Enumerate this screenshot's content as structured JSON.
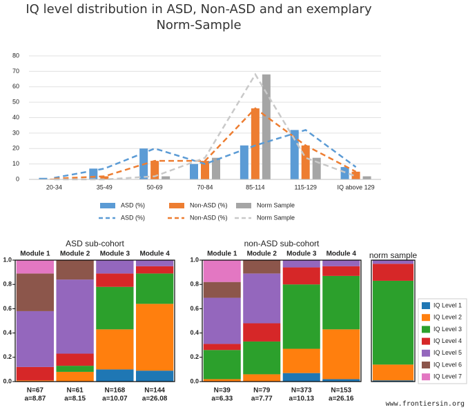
{
  "chart_data": [
    {
      "type": "bar",
      "title": "IQ level distribution in ASD, Non-ASD and an exemplary Norm-Sample",
      "categories": [
        "20-34",
        "35-49",
        "50-69",
        "70-84",
        "85-114",
        "115-129",
        "IQ above 129"
      ],
      "series": [
        {
          "name": "ASD (%)",
          "type": "bar",
          "color": "#5b9bd5",
          "values": [
            1,
            7,
            20,
            10,
            22,
            32,
            8
          ]
        },
        {
          "name": "Non-ASD (%)",
          "type": "bar",
          "color": "#ed7d31",
          "values": [
            0.5,
            2,
            12,
            12,
            46,
            22,
            5
          ]
        },
        {
          "name": "Norm Sample",
          "type": "bar",
          "color": "#a5a5a5",
          "values": [
            0,
            0,
            2,
            14,
            68,
            14,
            2
          ]
        },
        {
          "name": "ASD (%)",
          "type": "line",
          "color": "#5b9bd5",
          "values": [
            1,
            7,
            20,
            10,
            22,
            32,
            8
          ]
        },
        {
          "name": "Non-ASD (%)",
          "type": "line",
          "color": "#ed7d31",
          "values": [
            0.5,
            2,
            12,
            12,
            46,
            22,
            5
          ]
        },
        {
          "name": "Norm Sample",
          "type": "line",
          "color": "#c9c9c9",
          "values": [
            0,
            0,
            2,
            14,
            68,
            14,
            2
          ]
        }
      ],
      "ylim": [
        0,
        80
      ],
      "yticks": [
        0,
        10,
        20,
        30,
        40,
        50,
        60,
        70,
        80
      ],
      "grid": true
    },
    {
      "type": "stacked_bar",
      "title": "ASD sub-cohort",
      "categories": [
        "Module 1",
        "Module 2",
        "Module 3",
        "Module 4"
      ],
      "sample_labels": [
        "N=67",
        "N=61",
        "N=168",
        "N=144"
      ],
      "age_labels": [
        "a=8.87",
        "a=8.15",
        "a=10.07",
        "a=26.08"
      ],
      "series": [
        {
          "color": "#1f77b4",
          "values": [
            0,
            0,
            0.1,
            0.09
          ]
        },
        {
          "color": "#ff7f0e",
          "values": [
            0.01,
            0.08,
            0.33,
            0.55
          ]
        },
        {
          "color": "#2ca02c",
          "values": [
            0,
            0.05,
            0.35,
            0.25
          ]
        },
        {
          "color": "#d62728",
          "values": [
            0.11,
            0.1,
            0.11,
            0.06
          ]
        },
        {
          "color": "#9467bd",
          "values": [
            0.46,
            0.61,
            0.11,
            0.05
          ]
        },
        {
          "color": "#8c564b",
          "values": [
            0.31,
            0.16,
            0,
            0
          ]
        },
        {
          "color": "#e377c2",
          "values": [
            0.11,
            0,
            0,
            0
          ]
        }
      ],
      "ylim": [
        0,
        1
      ],
      "yticks": [
        {
          "value": 0,
          "label": "0.0"
        },
        0.2,
        0.4,
        0.6,
        0.8,
        {
          "value": 1,
          "label": "1.0"
        }
      ]
    },
    {
      "type": "stacked_bar",
      "title": "non-ASD sub-cohort",
      "categories": [
        "Module 1",
        "Module 2",
        "Module 3",
        "Module 4"
      ],
      "sample_labels": [
        "N=39",
        "N=79",
        "N=373",
        "N=153"
      ],
      "age_labels": [
        "a=6.33",
        "a=7.77",
        "a=10.13",
        "a=26.16"
      ],
      "series": [
        {
          "color": "#1f77b4",
          "values": [
            0,
            0,
            0.07,
            0.02
          ]
        },
        {
          "color": "#ff7f0e",
          "values": [
            0.02,
            0.06,
            0.2,
            0.41
          ]
        },
        {
          "color": "#2ca02c",
          "values": [
            0.24,
            0.27,
            0.53,
            0.44
          ]
        },
        {
          "color": "#d62728",
          "values": [
            0.05,
            0.15,
            0.14,
            0.08
          ]
        },
        {
          "color": "#9467bd",
          "values": [
            0.38,
            0.41,
            0.06,
            0.05
          ]
        },
        {
          "color": "#8c564b",
          "values": [
            0.13,
            0.11,
            0,
            0
          ]
        },
        {
          "color": "#e377c2",
          "values": [
            0.18,
            0,
            0,
            0
          ]
        }
      ],
      "ylim": [
        0,
        1
      ],
      "yticks": [
        {
          "value": 0,
          "label": "0.0"
        },
        0.2,
        0.4,
        0.6,
        0.8,
        {
          "value": 1,
          "label": "1.0"
        }
      ]
    },
    {
      "type": "stacked_bar",
      "title": "norm sample",
      "categories": [
        null
      ],
      "series": [
        {
          "name": "IQ Level 1",
          "color": "#1f77b4",
          "values": [
            0.01
          ]
        },
        {
          "name": "IQ Level 2",
          "color": "#ff7f0e",
          "values": [
            0.13
          ]
        },
        {
          "name": "IQ Level 3",
          "color": "#2ca02c",
          "values": [
            0.69
          ]
        },
        {
          "name": "IQ Level 4",
          "color": "#d62728",
          "values": [
            0.14
          ]
        },
        {
          "name": "IQ Level 5",
          "color": "#9467bd",
          "values": [
            0.03
          ]
        },
        {
          "name": "IQ Level 6",
          "color": "#8c564b",
          "values": [
            0
          ]
        },
        {
          "name": "IQ Level 7",
          "color": "#e377c2",
          "values": [
            0
          ]
        }
      ],
      "ylim": [
        0,
        1
      ],
      "legend": "right"
    }
  ],
  "watermark": "www.frontiersin.org"
}
